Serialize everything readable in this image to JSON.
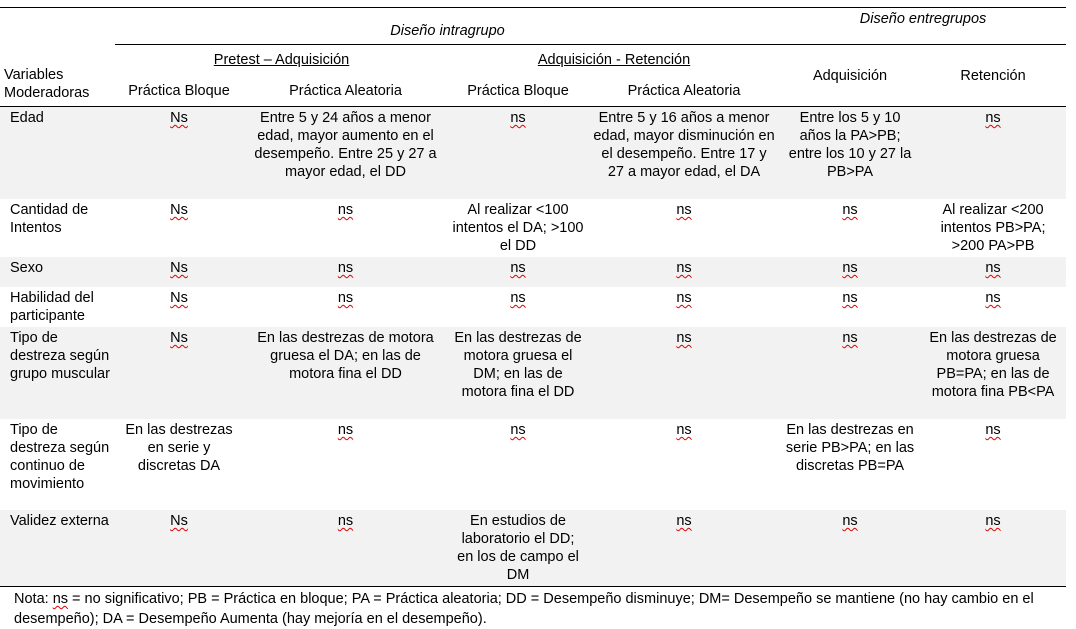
{
  "header": {
    "variables_label": "Variables Moderadoras",
    "intra_design": "Diseño intragrupo",
    "entre_design": "Diseño entregrupos",
    "pretest_adq": "Pretest – Adquisición",
    "adq_ret": "Adquisición - Retención",
    "entre_adq": "Adquisición",
    "entre_ret": "Retención",
    "practica_bloque": "Práctica Bloque",
    "practica_aleatoria": "Práctica Aleatoria"
  },
  "rows": [
    {
      "variable": "Edad",
      "c1": "Ns",
      "c2": "Entre 5 y 24 años a menor edad, mayor aumento en el desempeño. Entre 25 y 27 a mayor edad, el DD",
      "c3": "ns",
      "c4": "Entre 5 y 16 años a menor edad, mayor disminución en el desempeño. Entre 17 y 27 a mayor edad, el DA",
      "c5": "Entre los 5 y 10 años la PA>PB; entre los 10 y 27 la PB>PA",
      "c6": "ns"
    },
    {
      "variable": "Cantidad de Intentos",
      "c1": "Ns",
      "c2": "ns",
      "c3": "Al realizar <100 intentos el DA; >100 el DD",
      "c4": "ns",
      "c5": "ns",
      "c6": "Al realizar <200 intentos PB>PA; >200 PA>PB"
    },
    {
      "variable": "Sexo",
      "c1": "Ns",
      "c2": "ns",
      "c3": "ns",
      "c4": "ns",
      "c5": "ns",
      "c6": "ns"
    },
    {
      "variable": "Habilidad del participante",
      "c1": "Ns",
      "c2": "ns",
      "c3": "ns",
      "c4": "ns",
      "c5": "ns",
      "c6": "ns"
    },
    {
      "variable": "Tipo de destreza según grupo muscular",
      "c1": "Ns",
      "c2": "En las destrezas de motora gruesa el DA; en las de motora fina el DD",
      "c3": "En las destrezas de motora gruesa el DM; en las de motora fina el DD",
      "c4": "ns",
      "c5": "ns",
      "c6": "En las destrezas de motora gruesa PB=PA; en las de motora fina PB<PA"
    },
    {
      "variable": "Tipo de destreza según continuo de movimiento",
      "c1": "En las destrezas en serie y discretas DA",
      "c2": "ns",
      "c3": "ns",
      "c4": "ns",
      "c5": "En las destrezas en serie PB>PA; en las discretas PB=PA",
      "c6": "ns"
    },
    {
      "variable": "Validez externa",
      "c1": "Ns",
      "c2": "ns",
      "c3": "En estudios de laboratorio el DD; en los de campo el DM",
      "c4": "ns",
      "c5": "ns",
      "c6": "ns"
    }
  ],
  "note": {
    "ns": "ns",
    "text": "Nota: ns = no significativo; PB = Práctica en bloque; PA = Práctica aleatoria; DD = Desempeño disminuye; DM= Desempeño se mantiene (no hay cambio en el desempeño); DA = Desempeño Aumenta (hay mejoría en el desempeño)."
  }
}
